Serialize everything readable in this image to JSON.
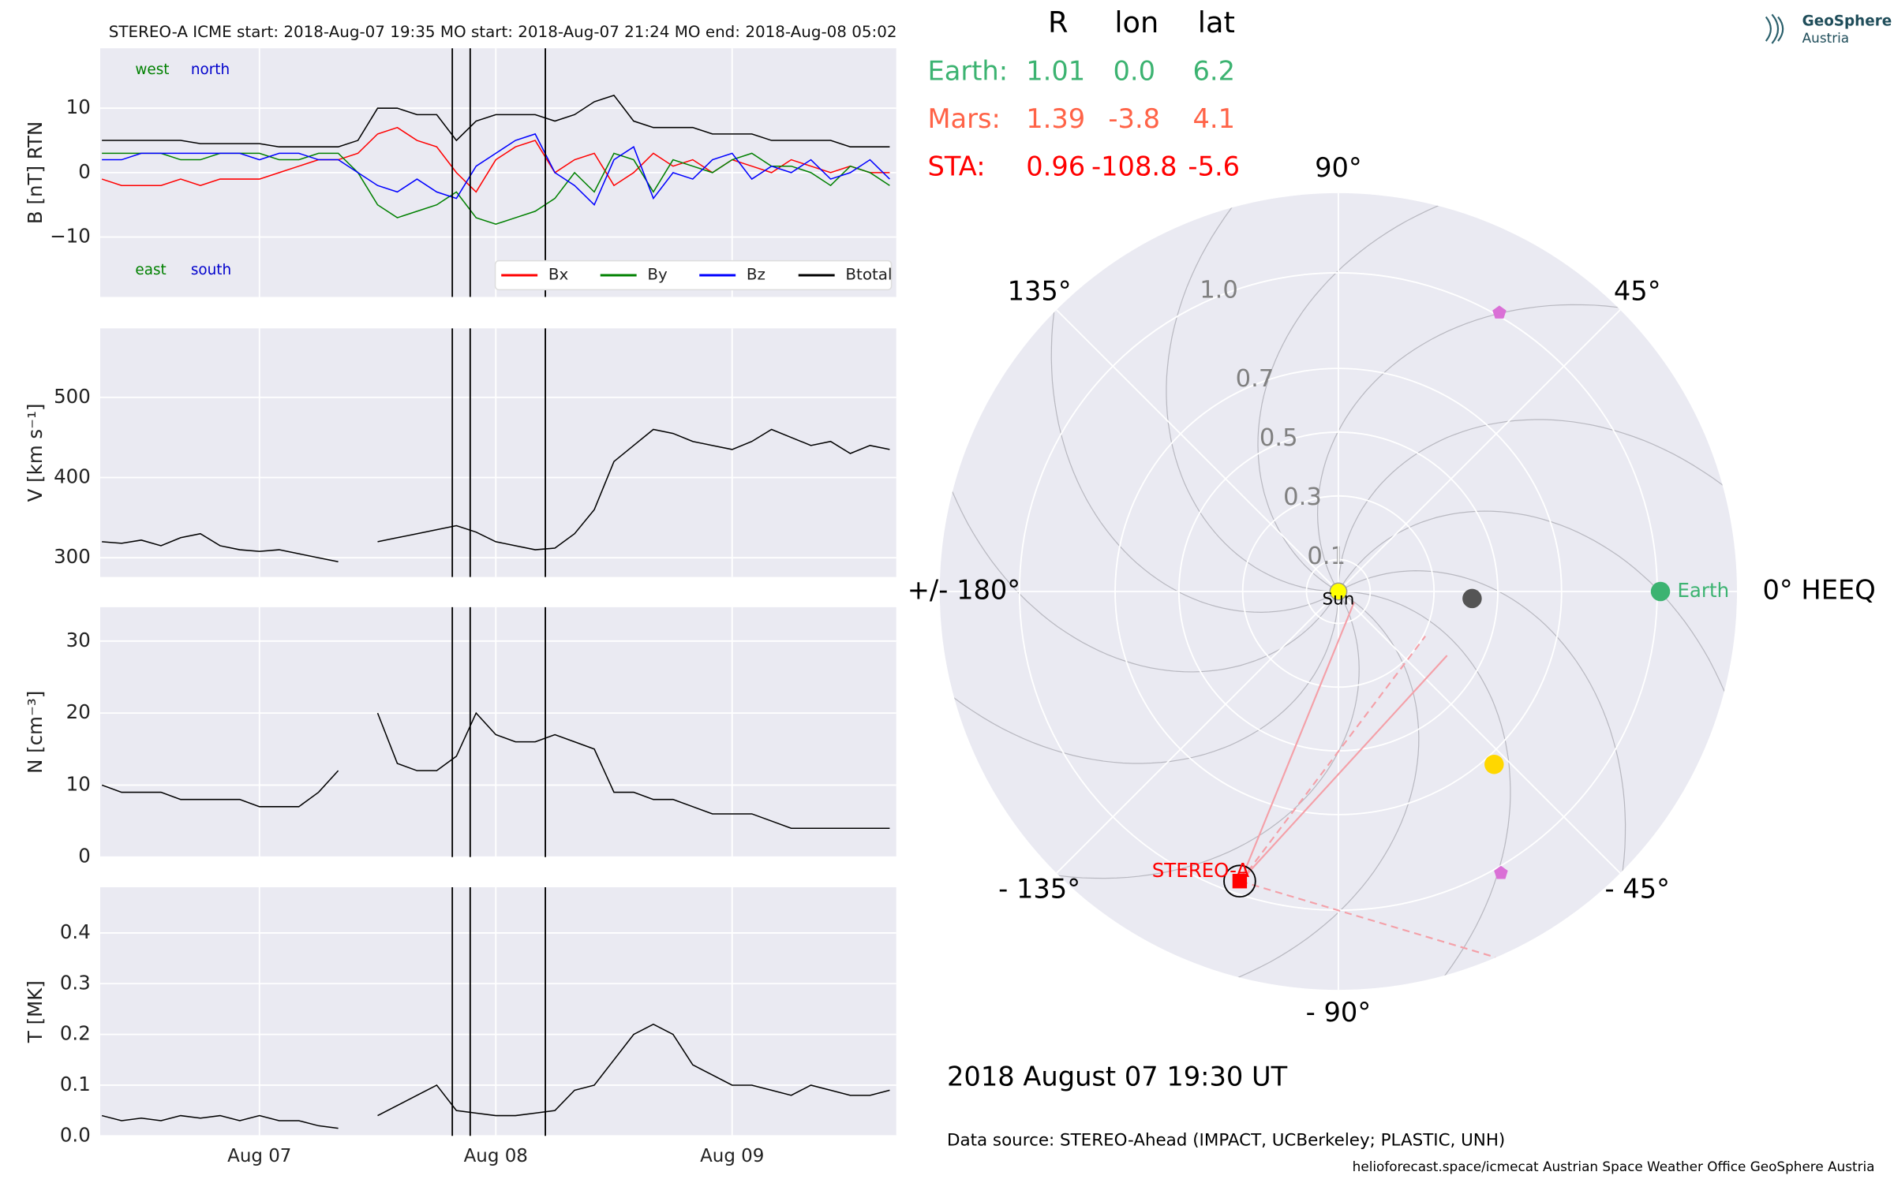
{
  "header": {
    "title": "STEREO-A    ICME start: 2018-Aug-07 19:35   MO start: 2018-Aug-07 21:24   MO end: 2018-Aug-08 05:02"
  },
  "logo": {
    "name": "GeoSphere",
    "sub": "Austria"
  },
  "events": [
    "2018-08-07 19:35",
    "2018-08-07 21:24",
    "2018-08-08 05:02"
  ],
  "chart_data": [
    {
      "type": "line",
      "ylabel": "B [nT] RTN",
      "xlim": [
        "2018-08-06 07:50",
        "2018-08-09 16:40"
      ],
      "xticks": [
        "2018-08-07 00:00",
        "2018-08-08 00:00",
        "2018-08-09 00:00"
      ],
      "ylim": [
        -19.3,
        19.3
      ],
      "yticks": [
        {
          "value": -10,
          "label": "−10"
        },
        0,
        10
      ],
      "annotations": [
        {
          "text": "west",
          "color": "#008000",
          "corner": "upper"
        },
        {
          "text": "north",
          "color": "#0000cc",
          "corner": "upper"
        },
        {
          "text": "east",
          "color": "#008000",
          "corner": "lower"
        },
        {
          "text": "south",
          "color": "#0000cc",
          "corner": "lower"
        }
      ],
      "legend": "lower right",
      "x": [
        "2018-08-06 08:00",
        "2018-08-06 10:00",
        "2018-08-06 12:00",
        "2018-08-06 14:00",
        "2018-08-06 16:00",
        "2018-08-06 18:00",
        "2018-08-06 20:00",
        "2018-08-06 22:00",
        "2018-08-07 00:00",
        "2018-08-07 02:00",
        "2018-08-07 04:00",
        "2018-08-07 06:00",
        "2018-08-07 08:00",
        "2018-08-07 10:00",
        "2018-08-07 12:00",
        "2018-08-07 14:00",
        "2018-08-07 16:00",
        "2018-08-07 18:00",
        "2018-08-07 20:00",
        "2018-08-07 22:00",
        "2018-08-08 00:00",
        "2018-08-08 02:00",
        "2018-08-08 04:00",
        "2018-08-08 06:00",
        "2018-08-08 08:00",
        "2018-08-08 10:00",
        "2018-08-08 12:00",
        "2018-08-08 14:00",
        "2018-08-08 16:00",
        "2018-08-08 18:00",
        "2018-08-08 20:00",
        "2018-08-08 22:00",
        "2018-08-09 00:00",
        "2018-08-09 02:00",
        "2018-08-09 04:00",
        "2018-08-09 06:00",
        "2018-08-09 08:00",
        "2018-08-09 10:00",
        "2018-08-09 12:00",
        "2018-08-09 14:00",
        "2018-08-09 16:00"
      ],
      "series": [
        {
          "name": "Bx",
          "color": "#ff0000",
          "values": [
            -1,
            -2,
            -2,
            -2,
            -1,
            -2,
            -1,
            -1,
            -1,
            0,
            1,
            2,
            2,
            3,
            6,
            7,
            5,
            4,
            0,
            -3,
            2,
            4,
            5,
            0,
            2,
            3,
            -2,
            0,
            3,
            1,
            2,
            0,
            2,
            1,
            0,
            2,
            1,
            0,
            1,
            0,
            0
          ]
        },
        {
          "name": "By",
          "color": "#008000",
          "values": [
            3,
            3,
            3,
            3,
            2,
            2,
            3,
            3,
            3,
            2,
            2,
            3,
            3,
            0,
            -5,
            -7,
            -6,
            -5,
            -3,
            -7,
            -8,
            -7,
            -6,
            -4,
            0,
            -3,
            3,
            2,
            -3,
            2,
            1,
            0,
            2,
            3,
            1,
            1,
            0,
            -2,
            1,
            0,
            -2
          ]
        },
        {
          "name": "Bz",
          "color": "#0000ff",
          "values": [
            2,
            2,
            3,
            3,
            3,
            3,
            3,
            3,
            2,
            3,
            3,
            2,
            2,
            0,
            -2,
            -3,
            -1,
            -3,
            -4,
            1,
            3,
            5,
            6,
            0,
            -2,
            -5,
            2,
            4,
            -4,
            0,
            -1,
            2,
            3,
            -1,
            1,
            0,
            2,
            -1,
            0,
            2,
            -1
          ]
        },
        {
          "name": "Btotal",
          "color": "#000000",
          "values": [
            5,
            5,
            5,
            5,
            5,
            4.5,
            4.5,
            4.5,
            4.5,
            4,
            4,
            4,
            4,
            5,
            10,
            10,
            9,
            9,
            5,
            8,
            9,
            9,
            9,
            8,
            9,
            11,
            12,
            8,
            7,
            7,
            7,
            6,
            6,
            6,
            5,
            5,
            5,
            5,
            4,
            4,
            4
          ]
        }
      ]
    },
    {
      "type": "line",
      "ylabel": "V [km s⁻¹]",
      "xlim": [
        "2018-08-06 07:50",
        "2018-08-09 16:40"
      ],
      "xticks": [
        "2018-08-07 00:00",
        "2018-08-08 00:00",
        "2018-08-09 00:00"
      ],
      "ylim": [
        276,
        586
      ],
      "yticks": [
        300,
        400,
        500
      ],
      "x": [
        "2018-08-06 08:00",
        "2018-08-06 10:00",
        "2018-08-06 12:00",
        "2018-08-06 14:00",
        "2018-08-06 16:00",
        "2018-08-06 18:00",
        "2018-08-06 20:00",
        "2018-08-06 22:00",
        "2018-08-07 00:00",
        "2018-08-07 02:00",
        "2018-08-07 04:00",
        "2018-08-07 06:00",
        "2018-08-07 08:00",
        "2018-08-07 10:00",
        "2018-08-07 12:00",
        "2018-08-07 14:00",
        "2018-08-07 16:00",
        "2018-08-07 18:00",
        "2018-08-07 20:00",
        "2018-08-07 22:00",
        "2018-08-08 00:00",
        "2018-08-08 02:00",
        "2018-08-08 04:00",
        "2018-08-08 06:00",
        "2018-08-08 08:00",
        "2018-08-08 10:00",
        "2018-08-08 12:00",
        "2018-08-08 14:00",
        "2018-08-08 16:00",
        "2018-08-08 18:00",
        "2018-08-08 20:00",
        "2018-08-08 22:00",
        "2018-08-09 00:00",
        "2018-08-09 02:00",
        "2018-08-09 04:00",
        "2018-08-09 06:00",
        "2018-08-09 08:00",
        "2018-08-09 10:00",
        "2018-08-09 12:00",
        "2018-08-09 14:00",
        "2018-08-09 16:00"
      ],
      "series": [
        {
          "color": "#000000",
          "values": [
            320,
            318,
            322,
            315,
            325,
            330,
            315,
            310,
            308,
            310,
            305,
            300,
            295,
            null,
            320,
            325,
            330,
            335,
            340,
            332,
            320,
            315,
            310,
            312,
            330,
            360,
            420,
            440,
            460,
            455,
            445,
            440,
            435,
            445,
            460,
            450,
            440,
            445,
            430,
            440,
            435
          ]
        }
      ]
    },
    {
      "type": "line",
      "ylabel": "N [cm⁻³]",
      "xlim": [
        "2018-08-06 07:50",
        "2018-08-09 16:40"
      ],
      "xticks": [
        "2018-08-07 00:00",
        "2018-08-08 00:00",
        "2018-08-09 00:00"
      ],
      "ylim": [
        0,
        34.7
      ],
      "yticks": [
        0,
        10,
        20,
        30
      ],
      "x": [
        "2018-08-06 08:00",
        "2018-08-06 10:00",
        "2018-08-06 12:00",
        "2018-08-06 14:00",
        "2018-08-06 16:00",
        "2018-08-06 18:00",
        "2018-08-06 20:00",
        "2018-08-06 22:00",
        "2018-08-07 00:00",
        "2018-08-07 02:00",
        "2018-08-07 04:00",
        "2018-08-07 06:00",
        "2018-08-07 08:00",
        "2018-08-07 10:00",
        "2018-08-07 12:00",
        "2018-08-07 14:00",
        "2018-08-07 16:00",
        "2018-08-07 18:00",
        "2018-08-07 20:00",
        "2018-08-07 22:00",
        "2018-08-08 00:00",
        "2018-08-08 02:00",
        "2018-08-08 04:00",
        "2018-08-08 06:00",
        "2018-08-08 08:00",
        "2018-08-08 10:00",
        "2018-08-08 12:00",
        "2018-08-08 14:00",
        "2018-08-08 16:00",
        "2018-08-08 18:00",
        "2018-08-08 20:00",
        "2018-08-08 22:00",
        "2018-08-09 00:00",
        "2018-08-09 02:00",
        "2018-08-09 04:00",
        "2018-08-09 06:00",
        "2018-08-09 08:00",
        "2018-08-09 10:00",
        "2018-08-09 12:00",
        "2018-08-09 14:00",
        "2018-08-09 16:00"
      ],
      "series": [
        {
          "color": "#000000",
          "values": [
            10,
            9,
            9,
            9,
            8,
            8,
            8,
            8,
            7,
            7,
            7,
            9,
            12,
            null,
            20,
            13,
            12,
            12,
            14,
            20,
            17,
            16,
            16,
            17,
            16,
            15,
            9,
            9,
            8,
            8,
            7,
            6,
            6,
            6,
            5,
            4,
            4,
            4,
            4,
            4,
            4
          ]
        }
      ]
    },
    {
      "type": "line",
      "ylabel": "T [MK]",
      "xlim": [
        "2018-08-06 07:50",
        "2018-08-09 16:40"
      ],
      "xticks": [
        {
          "value": "2018-08-07 00:00",
          "label": "Aug 07"
        },
        {
          "value": "2018-08-08 00:00",
          "label": "Aug 08"
        },
        {
          "value": "2018-08-09 00:00",
          "label": "Aug 09"
        }
      ],
      "ylim": [
        0,
        0.49
      ],
      "yticks": [
        {
          "value": 0,
          "label": "0.0"
        },
        0.1,
        0.2,
        0.3,
        0.4
      ],
      "x": [
        "2018-08-06 08:00",
        "2018-08-06 10:00",
        "2018-08-06 12:00",
        "2018-08-06 14:00",
        "2018-08-06 16:00",
        "2018-08-06 18:00",
        "2018-08-06 20:00",
        "2018-08-06 22:00",
        "2018-08-07 00:00",
        "2018-08-07 02:00",
        "2018-08-07 04:00",
        "2018-08-07 06:00",
        "2018-08-07 08:00",
        "2018-08-07 10:00",
        "2018-08-07 12:00",
        "2018-08-07 14:00",
        "2018-08-07 16:00",
        "2018-08-07 18:00",
        "2018-08-07 20:00",
        "2018-08-07 22:00",
        "2018-08-08 00:00",
        "2018-08-08 02:00",
        "2018-08-08 04:00",
        "2018-08-08 06:00",
        "2018-08-08 08:00",
        "2018-08-08 10:00",
        "2018-08-08 12:00",
        "2018-08-08 14:00",
        "2018-08-08 16:00",
        "2018-08-08 18:00",
        "2018-08-08 20:00",
        "2018-08-08 22:00",
        "2018-08-09 00:00",
        "2018-08-09 02:00",
        "2018-08-09 04:00",
        "2018-08-09 06:00",
        "2018-08-09 08:00",
        "2018-08-09 10:00",
        "2018-08-09 12:00",
        "2018-08-09 14:00",
        "2018-08-09 16:00"
      ],
      "series": [
        {
          "color": "#000000",
          "values": [
            0.04,
            0.03,
            0.035,
            0.03,
            0.04,
            0.035,
            0.04,
            0.03,
            0.04,
            0.03,
            0.03,
            0.02,
            0.015,
            null,
            0.04,
            0.06,
            0.08,
            0.1,
            0.05,
            0.045,
            0.04,
            0.04,
            0.045,
            0.05,
            0.09,
            0.1,
            0.15,
            0.2,
            0.22,
            0.2,
            0.14,
            0.12,
            0.1,
            0.1,
            0.09,
            0.08,
            0.1,
            0.09,
            0.08,
            0.08,
            0.09
          ]
        }
      ]
    },
    {
      "type": "polar",
      "rlim": [
        0,
        1.25
      ],
      "rticks": [
        0.1,
        0.3,
        0.5,
        0.7,
        {
          "value": 1,
          "label": "1.0"
        }
      ],
      "thetaticks": [
        {
          "value": 0,
          "label": "0° HEEQ"
        },
        {
          "value": 45,
          "label": "45°"
        },
        {
          "value": 90,
          "label": "90°"
        },
        {
          "value": 135,
          "label": "135°"
        },
        {
          "value": 180,
          "label": "+/- 180°"
        },
        {
          "value": -135,
          "label": "- 135°"
        },
        {
          "value": -90,
          "label": "- 90°"
        },
        {
          "value": -45,
          "label": "- 45°"
        }
      ],
      "bodies": [
        {
          "name": "Sun",
          "r": 0,
          "lon": 0,
          "color": "#ffff00",
          "marker": "circle"
        },
        {
          "name": "Earth",
          "r": 1.01,
          "lon": 0,
          "color": "#3cb371",
          "marker": "circle"
        },
        {
          "name": "STEREO-A",
          "r": 0.96,
          "lon": -108.8,
          "color": "#ff0000",
          "marker": "square"
        }
      ],
      "points": [
        {
          "r": 0.42,
          "lon": -3,
          "color": "#555555",
          "marker": "circle"
        },
        {
          "r": 0.73,
          "lon": -48,
          "color": "#ffd700",
          "marker": "circle"
        },
        {
          "r": 1.01,
          "lon": 60,
          "color": "#da70d6",
          "marker": "pentagon"
        },
        {
          "r": 1.02,
          "lon": -60,
          "color": "#da70d6",
          "marker": "pentagon"
        }
      ]
    }
  ],
  "table": {
    "columns": [
      "R",
      "lon",
      "lat"
    ],
    "rows": [
      {
        "name": "Earth:",
        "color": "#3cb371",
        "cells": [
          "1.01",
          "0.0",
          "6.2"
        ]
      },
      {
        "name": "Mars:",
        "color": "#ff6347",
        "cells": [
          "1.39",
          "-3.8",
          "4.1"
        ]
      },
      {
        "name": "STA:",
        "color": "#ff0000",
        "cells": [
          "0.96",
          "-108.8",
          "-5.6"
        ]
      }
    ]
  },
  "date": "2018 August 07  19:30 UT",
  "source": "Data source: STEREO-Ahead (IMPACT, UCBerkeley; PLASTIC, UNH)",
  "footer": "helioforecast.space/icmecat   Austrian Space Weather Office   GeoSphere Austria"
}
